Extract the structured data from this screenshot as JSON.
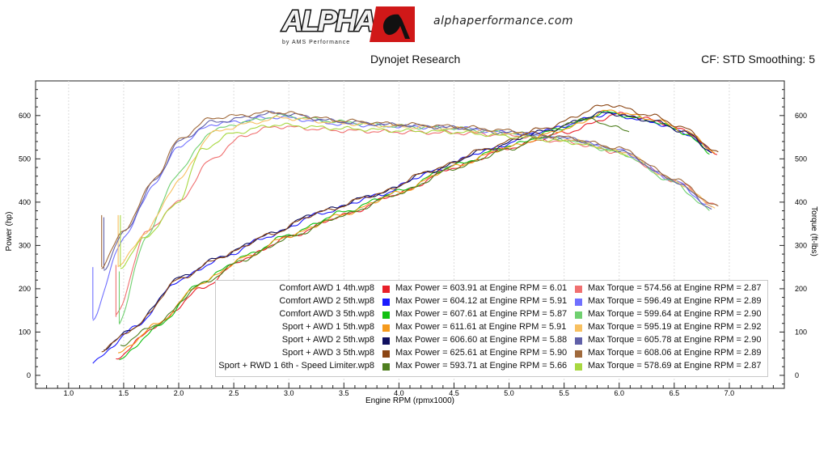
{
  "header": {
    "brand": "ALPHA",
    "brand_sub": "by AMS Performance",
    "website": "alphaperformance.com",
    "left_title": "Dynojet Research",
    "right_title": "CF: STD Smoothing: 5"
  },
  "chart_data": {
    "type": "line",
    "xlabel": "Engine RPM (rpmx1000)",
    "ylabel": "Power (hp)",
    "y2label": "Torque (ft-lbs)",
    "xlim": [
      0.7,
      7.5
    ],
    "ylim": [
      -30,
      680
    ],
    "x_ticks": [
      "1.0",
      "1.5",
      "2.0",
      "2.5",
      "3.0",
      "3.5",
      "4.0",
      "4.5",
      "5.0",
      "5.5",
      "6.0",
      "6.5",
      "7.0"
    ],
    "y_ticks": [
      "0",
      "100",
      "200",
      "300",
      "400",
      "500",
      "600"
    ],
    "grid": "vertical",
    "legend_position": "bottom-right",
    "series": [
      {
        "name": "Comfort AWD 1 4th.wp8",
        "color": "#e8202a",
        "torque_color": "#f07070",
        "max_power": "Max Power = 603.91 at Engine RPM = 6.01",
        "max_torque": "Max Torque = 574.56 at Engine RPM = 2.87",
        "start": 1.43,
        "end": 6.89,
        "power": [
          [
            1.43,
            40
          ],
          [
            1.8,
            115
          ],
          [
            2.2,
            200
          ],
          [
            2.6,
            270
          ],
          [
            3.0,
            320
          ],
          [
            3.5,
            370
          ],
          [
            4.0,
            420
          ],
          [
            4.5,
            480
          ],
          [
            5.0,
            525
          ],
          [
            5.5,
            560
          ],
          [
            6.01,
            603.9
          ],
          [
            6.3,
            590
          ],
          [
            6.6,
            565
          ],
          [
            6.89,
            510
          ]
        ],
        "torque": [
          [
            1.43,
            135
          ],
          [
            1.7,
            330
          ],
          [
            2.0,
            400
          ],
          [
            2.3,
            500
          ],
          [
            2.6,
            555
          ],
          [
            2.87,
            574.6
          ],
          [
            3.5,
            565
          ],
          [
            4.0,
            562
          ],
          [
            4.5,
            560
          ],
          [
            5.0,
            555
          ],
          [
            5.5,
            540
          ],
          [
            6.0,
            515
          ],
          [
            6.5,
            450
          ],
          [
            6.89,
            390
          ]
        ]
      },
      {
        "name": "Comfort AWD 2 5th.wp8",
        "color": "#1a1aff",
        "torque_color": "#7070ff",
        "max_power": "Max Power = 604.12 at Engine RPM = 5.91",
        "max_torque": "Max Torque = 596.49 at Engine RPM = 2.89",
        "start": 1.22,
        "end": 6.85,
        "power": [
          [
            1.22,
            30
          ],
          [
            1.6,
            110
          ],
          [
            2.0,
            220
          ],
          [
            2.4,
            272
          ],
          [
            2.8,
            320
          ],
          [
            3.3,
            375
          ],
          [
            3.8,
            415
          ],
          [
            4.3,
            470
          ],
          [
            4.8,
            520
          ],
          [
            5.3,
            565
          ],
          [
            5.91,
            604.1
          ],
          [
            6.3,
            585
          ],
          [
            6.6,
            560
          ],
          [
            6.85,
            515
          ]
        ],
        "torque": [
          [
            1.22,
            130
          ],
          [
            1.5,
            320
          ],
          [
            1.8,
            450
          ],
          [
            2.0,
            530
          ],
          [
            2.3,
            580
          ],
          [
            2.89,
            596.5
          ],
          [
            3.5,
            580
          ],
          [
            4.0,
            575
          ],
          [
            4.5,
            572
          ],
          [
            5.0,
            560
          ],
          [
            5.5,
            548
          ],
          [
            6.0,
            520
          ],
          [
            6.5,
            450
          ],
          [
            6.85,
            385
          ]
        ]
      },
      {
        "name": "Comfort AWD 3 5th.wp8",
        "color": "#12c012",
        "torque_color": "#70d070",
        "max_power": "Max Power = 607.61 at Engine RPM = 5.87",
        "max_torque": "Max Torque = 599.64 at Engine RPM = 2.90",
        "start": 1.46,
        "end": 6.83,
        "power": [
          [
            1.46,
            35
          ],
          [
            1.8,
            110
          ],
          [
            2.2,
            215
          ],
          [
            2.6,
            275
          ],
          [
            3.0,
            325
          ],
          [
            3.5,
            378
          ],
          [
            4.0,
            425
          ],
          [
            4.5,
            485
          ],
          [
            5.0,
            530
          ],
          [
            5.5,
            572
          ],
          [
            5.87,
            607.6
          ],
          [
            6.3,
            588
          ],
          [
            6.6,
            560
          ],
          [
            6.83,
            512
          ]
        ],
        "torque": [
          [
            1.46,
            120
          ],
          [
            1.7,
            320
          ],
          [
            2.0,
            470
          ],
          [
            2.3,
            565
          ],
          [
            2.6,
            585
          ],
          [
            2.9,
            599.6
          ],
          [
            3.5,
            585
          ],
          [
            4.0,
            575
          ],
          [
            4.5,
            570
          ],
          [
            5.0,
            560
          ],
          [
            5.5,
            545
          ],
          [
            6.0,
            515
          ],
          [
            6.5,
            445
          ],
          [
            6.83,
            380
          ]
        ]
      },
      {
        "name": "Sport + AWD 1 5th.wp8",
        "color": "#f59a1c",
        "torque_color": "#f8c060",
        "max_power": "Max Power = 611.61 at Engine RPM = 5.91",
        "max_torque": "Max Torque = 595.19 at Engine RPM = 2.92",
        "start": 1.45,
        "end": 6.88,
        "power": [
          [
            1.45,
            50
          ],
          [
            1.8,
            118
          ],
          [
            2.2,
            212
          ],
          [
            2.6,
            272
          ],
          [
            3.0,
            322
          ],
          [
            3.5,
            372
          ],
          [
            4.0,
            422
          ],
          [
            4.5,
            482
          ],
          [
            5.0,
            527
          ],
          [
            5.5,
            568
          ],
          [
            5.91,
            611.6
          ],
          [
            6.3,
            592
          ],
          [
            6.6,
            565
          ],
          [
            6.88,
            515
          ]
        ],
        "torque": [
          [
            1.45,
            250
          ],
          [
            1.7,
            330
          ],
          [
            2.0,
            450
          ],
          [
            2.3,
            560
          ],
          [
            2.6,
            580
          ],
          [
            2.92,
            595.2
          ],
          [
            3.5,
            582
          ],
          [
            4.0,
            575
          ],
          [
            4.5,
            570
          ],
          [
            5.0,
            558
          ],
          [
            5.5,
            545
          ],
          [
            6.0,
            520
          ],
          [
            6.5,
            450
          ],
          [
            6.88,
            388
          ]
        ]
      },
      {
        "name": "Sport + AWD 2 5th.wp8",
        "color": "#101060",
        "torque_color": "#6060a8",
        "max_power": "Max Power = 606.60 at Engine RPM = 5.88",
        "max_torque": "Max Torque = 605.78 at Engine RPM = 2.90",
        "start": 1.32,
        "end": 6.85,
        "power": [
          [
            1.32,
            62
          ],
          [
            1.6,
            112
          ],
          [
            2.0,
            225
          ],
          [
            2.4,
            276
          ],
          [
            2.8,
            324
          ],
          [
            3.3,
            380
          ],
          [
            3.8,
            418
          ],
          [
            4.3,
            472
          ],
          [
            4.8,
            522
          ],
          [
            5.3,
            563
          ],
          [
            5.88,
            606.6
          ],
          [
            6.3,
            588
          ],
          [
            6.6,
            562
          ],
          [
            6.85,
            515
          ]
        ],
        "torque": [
          [
            1.32,
            245
          ],
          [
            1.5,
            330
          ],
          [
            1.8,
            455
          ],
          [
            2.0,
            540
          ],
          [
            2.3,
            585
          ],
          [
            2.9,
            605.8
          ],
          [
            3.5,
            585
          ],
          [
            4.0,
            578
          ],
          [
            4.5,
            572
          ],
          [
            5.0,
            560
          ],
          [
            5.5,
            548
          ],
          [
            6.0,
            520
          ],
          [
            6.5,
            450
          ],
          [
            6.85,
            385
          ]
        ]
      },
      {
        "name": "Sport + AWD 3 5th.wp8",
        "color": "#8b4513",
        "torque_color": "#a06a3c",
        "max_power": "Max Power = 625.61 at Engine RPM = 5.90",
        "max_torque": "Max Torque = 608.06 at Engine RPM = 2.89",
        "start": 1.3,
        "end": 6.9,
        "power": [
          [
            1.3,
            58
          ],
          [
            1.6,
            110
          ],
          [
            2.0,
            222
          ],
          [
            2.4,
            275
          ],
          [
            2.8,
            323
          ],
          [
            3.3,
            378
          ],
          [
            3.8,
            418
          ],
          [
            4.3,
            474
          ],
          [
            4.8,
            524
          ],
          [
            5.3,
            570
          ],
          [
            5.9,
            625.6
          ],
          [
            6.3,
            600
          ],
          [
            6.6,
            570
          ],
          [
            6.9,
            512
          ]
        ],
        "torque": [
          [
            1.3,
            250
          ],
          [
            1.5,
            335
          ],
          [
            1.8,
            460
          ],
          [
            2.0,
            545
          ],
          [
            2.3,
            595
          ],
          [
            2.89,
            608.1
          ],
          [
            3.5,
            588
          ],
          [
            4.0,
            580
          ],
          [
            4.5,
            575
          ],
          [
            5.0,
            565
          ],
          [
            5.5,
            550
          ],
          [
            6.0,
            525
          ],
          [
            6.5,
            455
          ],
          [
            6.9,
            388
          ]
        ]
      },
      {
        "name": "Sport + RWD 1 6th - Speed Limiter.wp8",
        "color": "#4f7f1f",
        "torque_color": "#a8d840",
        "max_power": "Max Power = 593.71 at Engine RPM = 5.66",
        "max_torque": "Max Torque = 578.69 at Engine RPM = 2.87",
        "start": 1.47,
        "end": 6.1,
        "power": [
          [
            1.47,
            70
          ],
          [
            1.8,
            118
          ],
          [
            2.2,
            210
          ],
          [
            2.6,
            268
          ],
          [
            3.0,
            318
          ],
          [
            3.5,
            370
          ],
          [
            4.0,
            420
          ],
          [
            4.5,
            478
          ],
          [
            5.0,
            522
          ],
          [
            5.3,
            550
          ],
          [
            5.66,
            593.7
          ],
          [
            5.9,
            580
          ],
          [
            6.1,
            560
          ]
        ],
        "torque": [
          [
            1.47,
            250
          ],
          [
            1.7,
            320
          ],
          [
            2.0,
            400
          ],
          [
            2.2,
            520
          ],
          [
            2.5,
            560
          ],
          [
            2.87,
            578.7
          ],
          [
            3.5,
            570
          ],
          [
            4.0,
            565
          ],
          [
            4.5,
            562
          ],
          [
            5.0,
            552
          ],
          [
            5.5,
            540
          ],
          [
            5.8,
            528
          ],
          [
            6.1,
            505
          ]
        ]
      }
    ]
  }
}
